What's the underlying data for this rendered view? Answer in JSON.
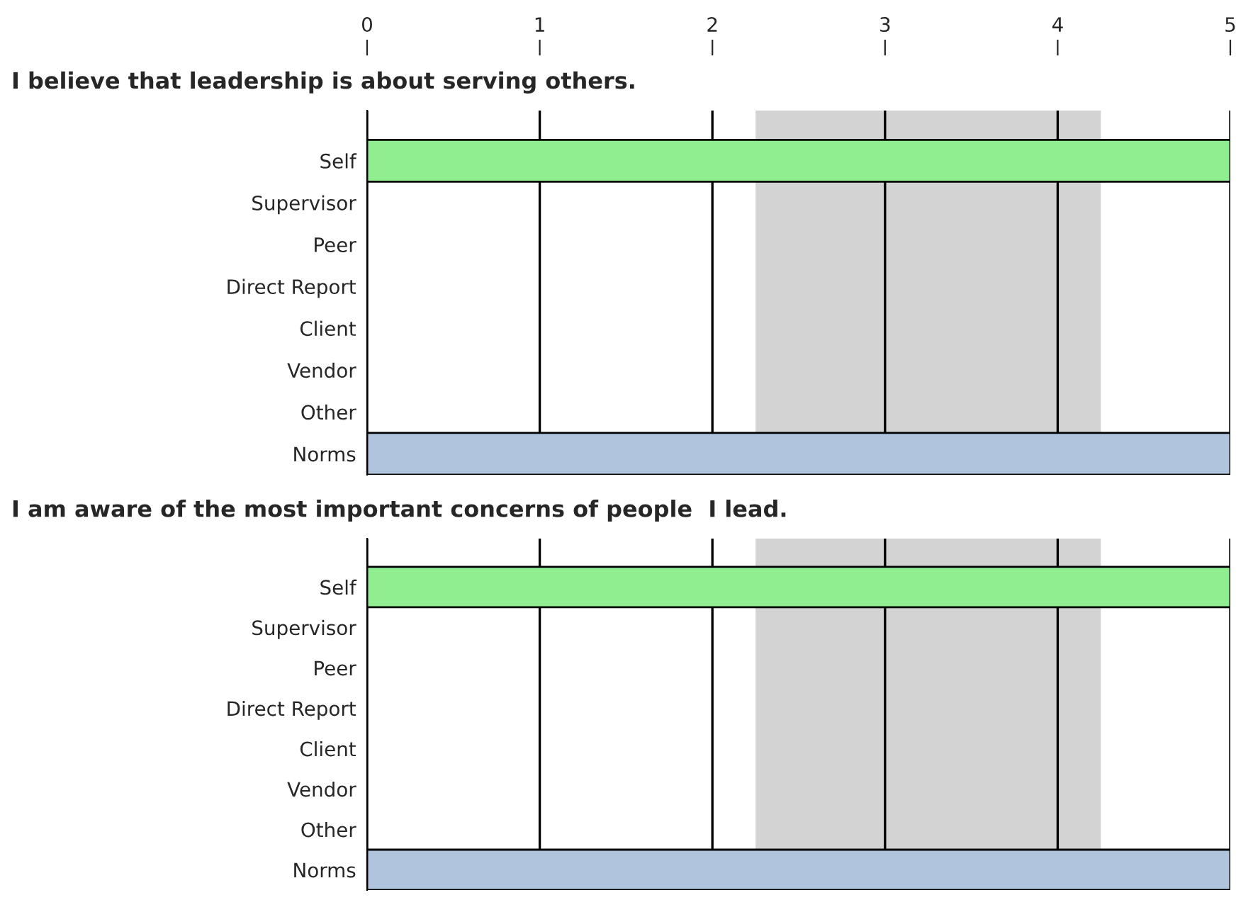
{
  "chart_data": [
    {
      "type": "bar",
      "orientation": "horizontal",
      "title": "I believe that leadership is about serving others.",
      "categories": [
        "Self",
        "Supervisor",
        "Peer",
        "Direct Report",
        "Client",
        "Vendor",
        "Other",
        "Norms"
      ],
      "values": [
        5,
        null,
        null,
        null,
        null,
        null,
        null,
        5
      ],
      "colors": [
        "#90ee90",
        "#90ee90",
        "#90ee90",
        "#90ee90",
        "#90ee90",
        "#90ee90",
        "#90ee90",
        "#b0c4de"
      ],
      "xlim": [
        0,
        5
      ],
      "xticks": [
        0,
        1,
        2,
        3,
        4,
        5
      ],
      "grid": "x",
      "bands": [
        {
          "axis": "x",
          "from": 2.25,
          "to": 4.25,
          "color": "#d3d3d3"
        }
      ]
    },
    {
      "type": "bar",
      "orientation": "horizontal",
      "title": "I am aware of the most important concerns of people  I lead.",
      "categories": [
        "Self",
        "Supervisor",
        "Peer",
        "Direct Report",
        "Client",
        "Vendor",
        "Other",
        "Norms"
      ],
      "values": [
        5,
        null,
        null,
        null,
        null,
        null,
        null,
        5
      ],
      "colors": [
        "#90ee90",
        "#90ee90",
        "#90ee90",
        "#90ee90",
        "#90ee90",
        "#90ee90",
        "#90ee90",
        "#b0c4de"
      ],
      "xlim": [
        0,
        5
      ],
      "xticks": [
        0,
        1,
        2,
        3,
        4,
        5
      ],
      "grid": "x",
      "tick_labels": "y",
      "bands": [
        {
          "axis": "x",
          "from": 2.25,
          "to": 4.25,
          "color": "#d3d3d3"
        }
      ]
    }
  ]
}
